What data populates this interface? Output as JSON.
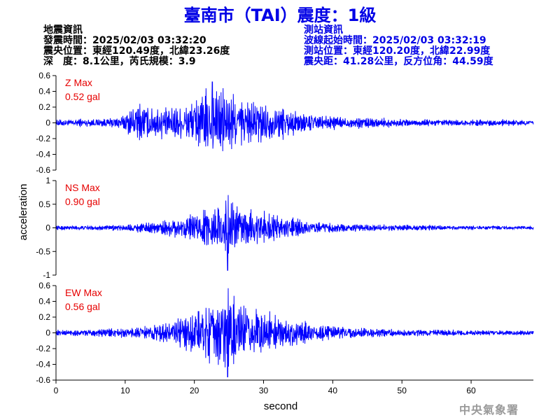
{
  "header": {
    "title": "臺南市（TAI）震度：1級"
  },
  "quake_info": {
    "heading": "地震資訊",
    "origin_time": "發震時間：2025/02/03 03:32:20",
    "epicenter": "震央位置：東經120.49度，北緯23.26度",
    "depth_magnitude": "深　度：8.1公里，芮氏規模：3.9"
  },
  "station_info": {
    "heading": "測站資訊",
    "wave_start": "波線起始時間：2025/02/03 03:32:19",
    "station_location": "測站位置：東經120.20度，北緯22.99度",
    "distance_azimuth": "震央距：41.28公里，反方位角：44.59度"
  },
  "footer": {
    "agency": "中央氣象署"
  },
  "colors": {
    "title": "#0000e6",
    "trace": "#0000ff",
    "max_label": "#e60000",
    "axis": "#000000",
    "agency": "#9a9a9a"
  },
  "chart_data": {
    "type": "line",
    "xlabel": "second",
    "ylabel": "acceleration",
    "xlim": [
      0,
      69
    ],
    "xticks": [
      "0",
      "10",
      "20",
      "30",
      "40",
      "50",
      "60"
    ],
    "grid": false,
    "panels": [
      {
        "name": "Z",
        "max_label": "Z Max",
        "max_value": "0.52 gal",
        "ylim": [
          -0.6,
          0.6
        ],
        "yticks": [
          "0.6",
          "0.4",
          "0.2",
          "0",
          "-0.2",
          "-0.4",
          "-0.6"
        ],
        "envelope": [
          [
            0,
            0.05
          ],
          [
            8,
            0.06
          ],
          [
            10,
            0.12
          ],
          [
            11,
            0.25
          ],
          [
            13,
            0.28
          ],
          [
            15,
            0.22
          ],
          [
            17,
            0.25
          ],
          [
            19,
            0.3
          ],
          [
            21,
            0.42
          ],
          [
            23,
            0.5
          ],
          [
            25,
            0.45
          ],
          [
            27,
            0.35
          ],
          [
            30,
            0.3
          ],
          [
            33,
            0.2
          ],
          [
            36,
            0.14
          ],
          [
            40,
            0.09
          ],
          [
            45,
            0.07
          ],
          [
            55,
            0.05
          ],
          [
            69,
            0.04
          ]
        ],
        "peak": {
          "t": 22.6,
          "value": 0.52
        }
      },
      {
        "name": "NS",
        "max_label": "NS Max",
        "max_value": "0.90 gal",
        "ylim": [
          -1,
          1
        ],
        "yticks": [
          "1",
          "0.5",
          "0",
          "-0.5",
          "-1"
        ],
        "envelope": [
          [
            0,
            0.05
          ],
          [
            8,
            0.06
          ],
          [
            12,
            0.1
          ],
          [
            15,
            0.15
          ],
          [
            18,
            0.25
          ],
          [
            20,
            0.3
          ],
          [
            22,
            0.45
          ],
          [
            24,
            0.6
          ],
          [
            25,
            0.7
          ],
          [
            26,
            0.55
          ],
          [
            28,
            0.45
          ],
          [
            30,
            0.35
          ],
          [
            33,
            0.25
          ],
          [
            37,
            0.14
          ],
          [
            42,
            0.1
          ],
          [
            50,
            0.07
          ],
          [
            60,
            0.05
          ],
          [
            69,
            0.04
          ]
        ],
        "peak": {
          "t": 24.8,
          "value": -0.9
        }
      },
      {
        "name": "EW",
        "max_label": "EW Max",
        "max_value": "0.56 gal",
        "ylim": [
          -0.6,
          0.6
        ],
        "yticks": [
          "0.6",
          "0.4",
          "0.2",
          "0",
          "-0.2",
          "-0.4",
          "-0.6"
        ],
        "envelope": [
          [
            0,
            0.04
          ],
          [
            6,
            0.05
          ],
          [
            10,
            0.07
          ],
          [
            13,
            0.1
          ],
          [
            16,
            0.15
          ],
          [
            18,
            0.22
          ],
          [
            20,
            0.32
          ],
          [
            22,
            0.42
          ],
          [
            24,
            0.5
          ],
          [
            25,
            0.52
          ],
          [
            27,
            0.42
          ],
          [
            29,
            0.35
          ],
          [
            31,
            0.28
          ],
          [
            34,
            0.2
          ],
          [
            37,
            0.13
          ],
          [
            42,
            0.08
          ],
          [
            50,
            0.05
          ],
          [
            69,
            0.03
          ]
        ],
        "peak": {
          "t": 24.8,
          "value": -0.56
        }
      }
    ]
  }
}
